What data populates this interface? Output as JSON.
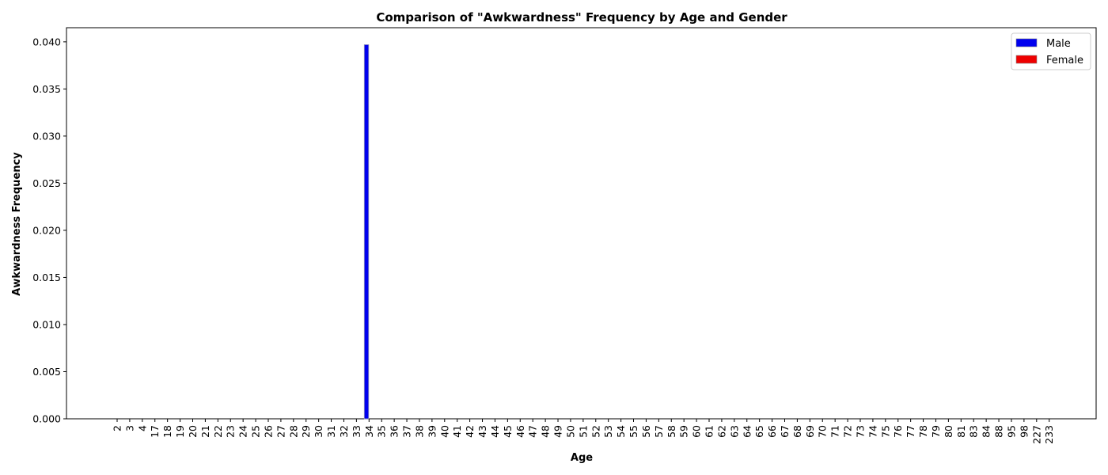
{
  "chart_data": {
    "type": "bar",
    "title": "Comparison of \"Awkwardness\" Frequency by Age and Gender",
    "xlabel": "Age",
    "ylabel": "Awkwardness Frequency",
    "ylim": [
      0,
      0.0415
    ],
    "yticks": [
      "0.000",
      "0.005",
      "0.010",
      "0.015",
      "0.020",
      "0.025",
      "0.030",
      "0.035",
      "0.040"
    ],
    "grid": false,
    "legend_position": "top-right",
    "categories": [
      "2",
      "3",
      "4",
      "17",
      "18",
      "19",
      "20",
      "21",
      "22",
      "23",
      "24",
      "25",
      "26",
      "27",
      "28",
      "29",
      "30",
      "31",
      "32",
      "33",
      "34",
      "35",
      "36",
      "37",
      "38",
      "39",
      "40",
      "41",
      "42",
      "43",
      "44",
      "45",
      "46",
      "47",
      "48",
      "49",
      "50",
      "51",
      "52",
      "53",
      "54",
      "55",
      "56",
      "57",
      "58",
      "59",
      "60",
      "61",
      "62",
      "63",
      "64",
      "65",
      "66",
      "67",
      "68",
      "69",
      "70",
      "71",
      "72",
      "73",
      "74",
      "75",
      "76",
      "77",
      "78",
      "79",
      "80",
      "81",
      "83",
      "84",
      "88",
      "95",
      "98",
      "227",
      "233"
    ],
    "series": [
      {
        "name": "Male",
        "color": "#0000ee",
        "values": [
          0,
          0,
          0,
          0,
          0,
          0,
          0,
          0,
          0,
          0,
          0,
          0,
          0,
          0,
          0,
          0,
          0,
          0,
          0,
          0,
          0.0397,
          0,
          0,
          0,
          0,
          0,
          0,
          0,
          0,
          0,
          0,
          0,
          0,
          0,
          0,
          0,
          0,
          0,
          0,
          0,
          0,
          0,
          0,
          0,
          0,
          0,
          0,
          0,
          0,
          0,
          0,
          0,
          0,
          0,
          0,
          0,
          0,
          0,
          0,
          0,
          0,
          0,
          0,
          0,
          0,
          0,
          0,
          0,
          0,
          0,
          0,
          0,
          0,
          0,
          0
        ]
      },
      {
        "name": "Female",
        "color": "#ee0000",
        "values": [
          0,
          0,
          0,
          0,
          0,
          0,
          0,
          0,
          0,
          0,
          0,
          0,
          0,
          0,
          0,
          0,
          0,
          0,
          0,
          0,
          0,
          0,
          0,
          0,
          0,
          0,
          0,
          0,
          0,
          0,
          0,
          0,
          0,
          0,
          0,
          0,
          0,
          0,
          0,
          0,
          0,
          0,
          0,
          0,
          0,
          0,
          0,
          0,
          0,
          0,
          0,
          0,
          0,
          0,
          0,
          0,
          0,
          0,
          0,
          0,
          0,
          0,
          0,
          0,
          0,
          0,
          0,
          0,
          0,
          0,
          0,
          0,
          0,
          0,
          0
        ]
      }
    ]
  }
}
